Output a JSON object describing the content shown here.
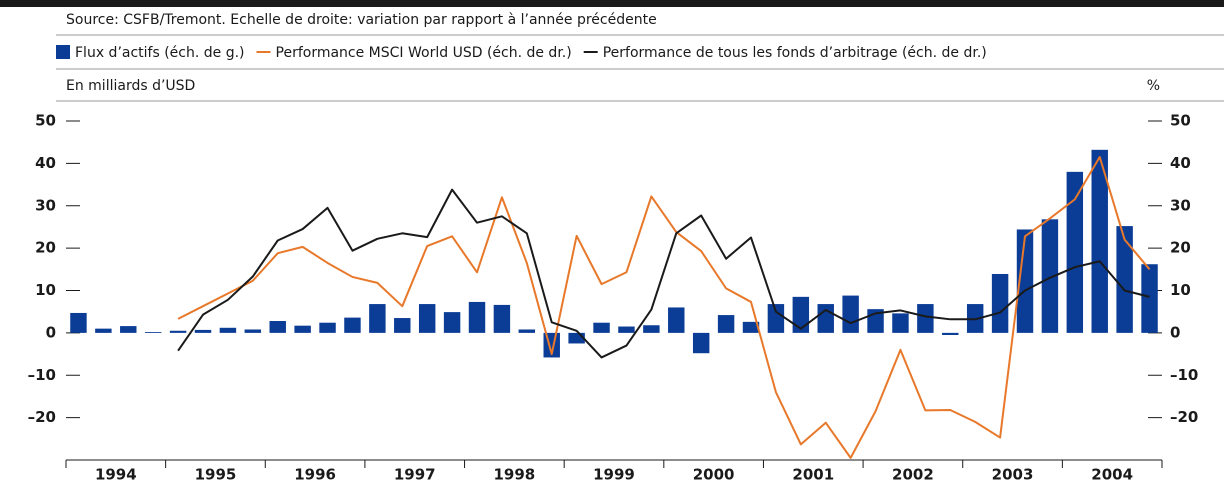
{
  "chart_data": {
    "type": "bar",
    "source": "Source: CSFB/Tremont. Echelle de droite: variation par rapport à l’année précédente",
    "ylabel": "En milliards d’USD",
    "y2label": "%",
    "categories": [
      null,
      "1994",
      null,
      null,
      null,
      "1995",
      null,
      null,
      null,
      "1996",
      null,
      null,
      null,
      "1997",
      null,
      null,
      null,
      "1998",
      null,
      null,
      null,
      "1999",
      null,
      null,
      null,
      "2000",
      null,
      null,
      null,
      "2001",
      null,
      null,
      null,
      "2002",
      null,
      null,
      null,
      "2003",
      null,
      null,
      null,
      "2004",
      null,
      null
    ],
    "ylim": [
      -30,
      50
    ],
    "yticks": [
      {
        "value": -20,
        "label": "–20"
      },
      {
        "value": -10,
        "label": "–10"
      },
      0,
      10,
      20,
      30,
      40,
      50
    ],
    "y2lim": [
      -30,
      50
    ],
    "y2ticks": [
      {
        "value": -20,
        "label": "–20"
      },
      {
        "value": -10,
        "label": "–10"
      },
      0,
      10,
      20,
      30,
      40,
      50
    ],
    "series": [
      {
        "name": "Flux d’actifs (éch. de g.)",
        "type": "bar",
        "color": "#0b3d96",
        "values": [
          4.7,
          1.0,
          1.6,
          0.2,
          0.5,
          0.7,
          1.2,
          0.8,
          2.8,
          1.7,
          2.4,
          3.6,
          6.8,
          3.5,
          6.8,
          4.9,
          7.3,
          6.6,
          0.8,
          -5.8,
          -2.5,
          2.4,
          1.5,
          1.8,
          6.0,
          -4.8,
          4.2,
          2.6,
          6.8,
          8.5,
          6.8,
          8.8,
          5.6,
          4.6,
          6.8,
          -0.5,
          6.8,
          13.9,
          24.4,
          26.8,
          38.0,
          43.2,
          25.2,
          16.2
        ]
      },
      {
        "name": "Performance MSCI World USD (éch. de dr.)",
        "type": "line",
        "axis": "y2",
        "color": "#e8782a",
        "values": [
          null,
          null,
          null,
          null,
          3.3,
          6.3,
          9.3,
          12.3,
          18.8,
          20.3,
          16.5,
          13.2,
          11.8,
          6.3,
          20.5,
          22.8,
          14.3,
          32,
          16.5,
          -5,
          22.9,
          11.5,
          14.3,
          32.2,
          23.8,
          19.3,
          10.5,
          7.3,
          -14,
          -26.3,
          -21.2,
          -29.5,
          -18.5,
          -4,
          -18.3,
          -18.2,
          -21,
          -24.7,
          22.8,
          27,
          31.5,
          41.5,
          22,
          15
        ]
      },
      {
        "name": "Performance de tous les fonds d’arbitrage (éch. de dr.)",
        "type": "line",
        "axis": "y2",
        "color": "#1a1a1a",
        "values": [
          null,
          null,
          null,
          null,
          -4.2,
          4.3,
          7.8,
          13.3,
          21.8,
          24.5,
          29.5,
          19.4,
          22.2,
          23.5,
          22.6,
          33.8,
          26,
          27.5,
          23.5,
          2.5,
          0.5,
          -5.8,
          -3,
          5.5,
          23.5,
          27.7,
          17.5,
          22.5,
          5,
          1,
          5.4,
          2.3,
          4.6,
          5.3,
          3.9,
          3.2,
          3.2,
          4.8,
          10,
          13,
          15.5,
          16.9,
          10,
          8.5
        ]
      }
    ]
  }
}
